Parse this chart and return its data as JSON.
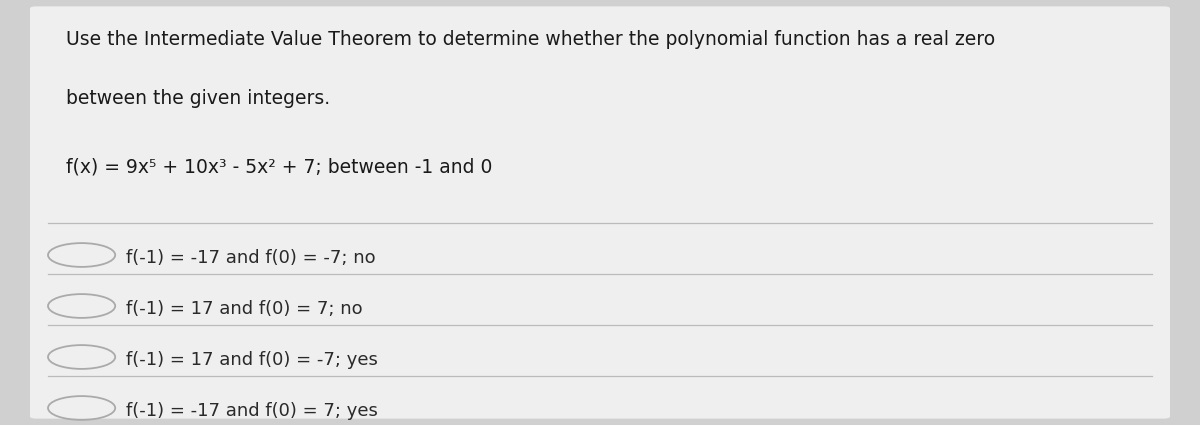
{
  "background_color": "#d0d0d0",
  "card_color": "#efefef",
  "question_text_line1": "Use the Intermediate Value Theorem to determine whether the polynomial function has a real zero",
  "question_text_line2": "between the given integers.",
  "function_line": "f(x) = 9x⁵ + 10x³ - 5x² + 7; between -1 and 0",
  "options": [
    "f(-1) = -17 and f(0) = -7; no",
    "f(-1) = 17 and f(0) = 7; no",
    "f(-1) = 17 and f(0) = -7; yes",
    "f(-1) = -17 and f(0) = 7; yes"
  ],
  "text_color": "#1a1a1a",
  "option_text_color": "#2a2a2a",
  "line_color": "#bbbbbb",
  "font_size_question": 13.5,
  "font_size_function": 13.5,
  "font_size_option": 13.0,
  "circle_color": "#aaaaaa"
}
